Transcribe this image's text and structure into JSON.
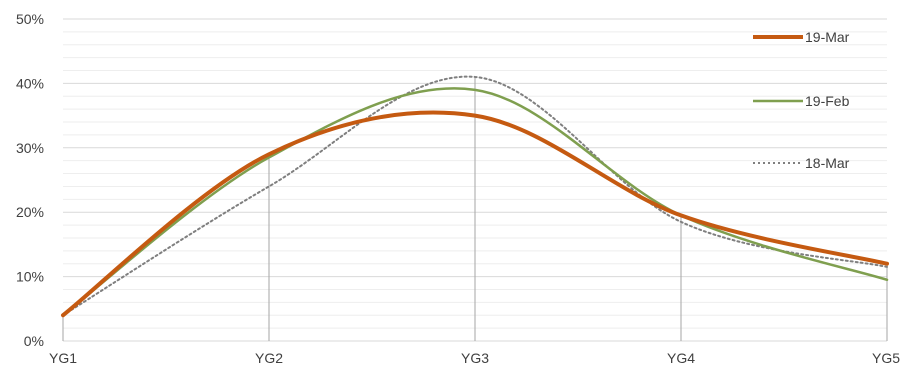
{
  "chart_data": {
    "type": "line",
    "categories": [
      "YG1",
      "YG2",
      "YG3",
      "YG4",
      "YG5"
    ],
    "ylim": [
      0,
      0.5
    ],
    "yticks": [
      "0%",
      "10%",
      "20%",
      "30%",
      "40%",
      "50%"
    ],
    "ytick_values": [
      0,
      0.1,
      0.2,
      0.3,
      0.4,
      0.5
    ],
    "grid": true,
    "legend_position": "right",
    "series": [
      {
        "name": "19-Mar",
        "values": [
          0.04,
          0.29,
          0.35,
          0.195,
          0.12
        ],
        "color": "#C55A11",
        "style": "solid-thick"
      },
      {
        "name": "19-Feb",
        "values": [
          0.04,
          0.285,
          0.39,
          0.195,
          0.095
        ],
        "color": "#7F9F4F",
        "style": "solid"
      },
      {
        "name": "18-Mar",
        "values": [
          0.04,
          0.24,
          0.41,
          0.185,
          0.115
        ],
        "color": "#7F7F7F",
        "style": "dotted"
      }
    ]
  }
}
